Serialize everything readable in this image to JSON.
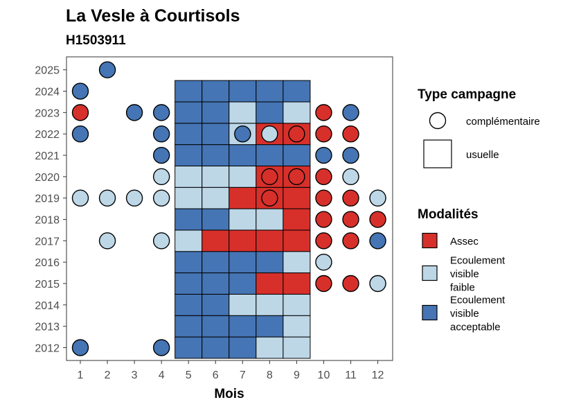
{
  "chart_data": {
    "type": "heatmap",
    "title": "La Vesle à Courtisols",
    "subtitle": "H1503911",
    "xlabel": "Mois",
    "ylabel": "",
    "x_ticks": [
      "1",
      "2",
      "3",
      "4",
      "5",
      "6",
      "7",
      "8",
      "9",
      "10",
      "11",
      "12"
    ],
    "y_ticks": [
      "2012",
      "2013",
      "2014",
      "2015",
      "2016",
      "2017",
      "2018",
      "2019",
      "2020",
      "2021",
      "2022",
      "2023",
      "2024",
      "2025"
    ],
    "grid": false,
    "legend_position": "right",
    "colors": {
      "assec": "#d7302b",
      "faible": "#bdd7e7",
      "acceptable": "#4575b4"
    },
    "legends": {
      "shape": {
        "title": "Type campagne",
        "entries": [
          {
            "key": "complementaire",
            "label": "complémentaire",
            "shape": "circle"
          },
          {
            "key": "usuelle",
            "label": "usuelle",
            "shape": "square"
          }
        ]
      },
      "fill": {
        "title": "Modalités",
        "entries": [
          {
            "key": "assec",
            "lines": [
              "Assec"
            ]
          },
          {
            "key": "faible",
            "lines": [
              "Ecoulement",
              "visible",
              "faible"
            ]
          },
          {
            "key": "acceptable",
            "lines": [
              "Ecoulement",
              "visible",
              "acceptable"
            ]
          }
        ]
      }
    },
    "usuelle": [
      {
        "year": 2012,
        "month": 5,
        "value": "acceptable"
      },
      {
        "year": 2012,
        "month": 6,
        "value": "acceptable"
      },
      {
        "year": 2012,
        "month": 7,
        "value": "acceptable"
      },
      {
        "year": 2012,
        "month": 8,
        "value": "faible"
      },
      {
        "year": 2012,
        "month": 9,
        "value": "faible"
      },
      {
        "year": 2013,
        "month": 5,
        "value": "acceptable"
      },
      {
        "year": 2013,
        "month": 6,
        "value": "acceptable"
      },
      {
        "year": 2013,
        "month": 7,
        "value": "acceptable"
      },
      {
        "year": 2013,
        "month": 8,
        "value": "acceptable"
      },
      {
        "year": 2013,
        "month": 9,
        "value": "faible"
      },
      {
        "year": 2014,
        "month": 5,
        "value": "acceptable"
      },
      {
        "year": 2014,
        "month": 6,
        "value": "acceptable"
      },
      {
        "year": 2014,
        "month": 7,
        "value": "faible"
      },
      {
        "year": 2014,
        "month": 8,
        "value": "faible"
      },
      {
        "year": 2014,
        "month": 9,
        "value": "faible"
      },
      {
        "year": 2015,
        "month": 5,
        "value": "acceptable"
      },
      {
        "year": 2015,
        "month": 6,
        "value": "acceptable"
      },
      {
        "year": 2015,
        "month": 7,
        "value": "acceptable"
      },
      {
        "year": 2015,
        "month": 8,
        "value": "assec"
      },
      {
        "year": 2015,
        "month": 9,
        "value": "assec"
      },
      {
        "year": 2016,
        "month": 5,
        "value": "acceptable"
      },
      {
        "year": 2016,
        "month": 6,
        "value": "acceptable"
      },
      {
        "year": 2016,
        "month": 7,
        "value": "acceptable"
      },
      {
        "year": 2016,
        "month": 8,
        "value": "acceptable"
      },
      {
        "year": 2016,
        "month": 9,
        "value": "faible"
      },
      {
        "year": 2017,
        "month": 5,
        "value": "faible"
      },
      {
        "year": 2017,
        "month": 6,
        "value": "assec"
      },
      {
        "year": 2017,
        "month": 7,
        "value": "assec"
      },
      {
        "year": 2017,
        "month": 8,
        "value": "assec"
      },
      {
        "year": 2017,
        "month": 9,
        "value": "assec"
      },
      {
        "year": 2018,
        "month": 5,
        "value": "acceptable"
      },
      {
        "year": 2018,
        "month": 6,
        "value": "acceptable"
      },
      {
        "year": 2018,
        "month": 7,
        "value": "faible"
      },
      {
        "year": 2018,
        "month": 8,
        "value": "faible"
      },
      {
        "year": 2018,
        "month": 9,
        "value": "assec"
      },
      {
        "year": 2019,
        "month": 5,
        "value": "faible"
      },
      {
        "year": 2019,
        "month": 6,
        "value": "faible"
      },
      {
        "year": 2019,
        "month": 7,
        "value": "assec"
      },
      {
        "year": 2019,
        "month": 8,
        "value": "assec"
      },
      {
        "year": 2019,
        "month": 9,
        "value": "assec"
      },
      {
        "year": 2020,
        "month": 5,
        "value": "faible"
      },
      {
        "year": 2020,
        "month": 6,
        "value": "faible"
      },
      {
        "year": 2020,
        "month": 7,
        "value": "faible"
      },
      {
        "year": 2020,
        "month": 8,
        "value": "assec"
      },
      {
        "year": 2020,
        "month": 9,
        "value": "assec"
      },
      {
        "year": 2021,
        "month": 5,
        "value": "acceptable"
      },
      {
        "year": 2021,
        "month": 6,
        "value": "acceptable"
      },
      {
        "year": 2021,
        "month": 7,
        "value": "acceptable"
      },
      {
        "year": 2021,
        "month": 8,
        "value": "acceptable"
      },
      {
        "year": 2021,
        "month": 9,
        "value": "acceptable"
      },
      {
        "year": 2022,
        "month": 5,
        "value": "acceptable"
      },
      {
        "year": 2022,
        "month": 6,
        "value": "acceptable"
      },
      {
        "year": 2022,
        "month": 7,
        "value": "faible"
      },
      {
        "year": 2022,
        "month": 8,
        "value": "assec"
      },
      {
        "year": 2022,
        "month": 9,
        "value": "assec"
      },
      {
        "year": 2023,
        "month": 5,
        "value": "acceptable"
      },
      {
        "year": 2023,
        "month": 6,
        "value": "acceptable"
      },
      {
        "year": 2023,
        "month": 7,
        "value": "faible"
      },
      {
        "year": 2023,
        "month": 8,
        "value": "acceptable"
      },
      {
        "year": 2023,
        "month": 9,
        "value": "faible"
      },
      {
        "year": 2024,
        "month": 5,
        "value": "acceptable"
      },
      {
        "year": 2024,
        "month": 6,
        "value": "acceptable"
      },
      {
        "year": 2024,
        "month": 7,
        "value": "acceptable"
      },
      {
        "year": 2024,
        "month": 8,
        "value": "acceptable"
      },
      {
        "year": 2024,
        "month": 9,
        "value": "acceptable"
      }
    ],
    "complementaire": [
      {
        "year": 2012,
        "month": 1,
        "value": "acceptable"
      },
      {
        "year": 2012,
        "month": 4,
        "value": "acceptable"
      },
      {
        "year": 2015,
        "month": 10,
        "value": "assec"
      },
      {
        "year": 2015,
        "month": 11,
        "value": "assec"
      },
      {
        "year": 2015,
        "month": 12,
        "value": "faible"
      },
      {
        "year": 2016,
        "month": 10,
        "value": "faible"
      },
      {
        "year": 2017,
        "month": 2,
        "value": "faible"
      },
      {
        "year": 2017,
        "month": 4,
        "value": "faible"
      },
      {
        "year": 2017,
        "month": 10,
        "value": "assec"
      },
      {
        "year": 2017,
        "month": 11,
        "value": "assec"
      },
      {
        "year": 2017,
        "month": 12,
        "value": "acceptable"
      },
      {
        "year": 2018,
        "month": 10,
        "value": "assec"
      },
      {
        "year": 2018,
        "month": 11,
        "value": "assec"
      },
      {
        "year": 2018,
        "month": 12,
        "value": "assec"
      },
      {
        "year": 2019,
        "month": 1,
        "value": "faible"
      },
      {
        "year": 2019,
        "month": 2,
        "value": "faible"
      },
      {
        "year": 2019,
        "month": 3,
        "value": "faible"
      },
      {
        "year": 2019,
        "month": 4,
        "value": "faible"
      },
      {
        "year": 2019,
        "month": 8,
        "value": "assec"
      },
      {
        "year": 2019,
        "month": 10,
        "value": "assec"
      },
      {
        "year": 2019,
        "month": 11,
        "value": "assec"
      },
      {
        "year": 2019,
        "month": 12,
        "value": "faible"
      },
      {
        "year": 2020,
        "month": 4,
        "value": "faible"
      },
      {
        "year": 2020,
        "month": 8,
        "value": "assec"
      },
      {
        "year": 2020,
        "month": 9,
        "value": "assec"
      },
      {
        "year": 2020,
        "month": 10,
        "value": "assec"
      },
      {
        "year": 2020,
        "month": 11,
        "value": "faible"
      },
      {
        "year": 2021,
        "month": 4,
        "value": "acceptable"
      },
      {
        "year": 2021,
        "month": 10,
        "value": "acceptable"
      },
      {
        "year": 2021,
        "month": 11,
        "value": "acceptable"
      },
      {
        "year": 2022,
        "month": 1,
        "value": "acceptable"
      },
      {
        "year": 2022,
        "month": 4,
        "value": "acceptable"
      },
      {
        "year": 2022,
        "month": 7,
        "value": "acceptable"
      },
      {
        "year": 2022,
        "month": 8,
        "value": "faible"
      },
      {
        "year": 2022,
        "month": 9,
        "value": "assec"
      },
      {
        "year": 2022,
        "month": 10,
        "value": "assec"
      },
      {
        "year": 2022,
        "month": 11,
        "value": "assec"
      },
      {
        "year": 2023,
        "month": 1,
        "value": "assec"
      },
      {
        "year": 2023,
        "month": 3,
        "value": "acceptable"
      },
      {
        "year": 2023,
        "month": 4,
        "value": "acceptable"
      },
      {
        "year": 2023,
        "month": 10,
        "value": "assec"
      },
      {
        "year": 2023,
        "month": 11,
        "value": "acceptable"
      },
      {
        "year": 2024,
        "month": 1,
        "value": "acceptable"
      },
      {
        "year": 2025,
        "month": 2,
        "value": "acceptable"
      }
    ]
  }
}
